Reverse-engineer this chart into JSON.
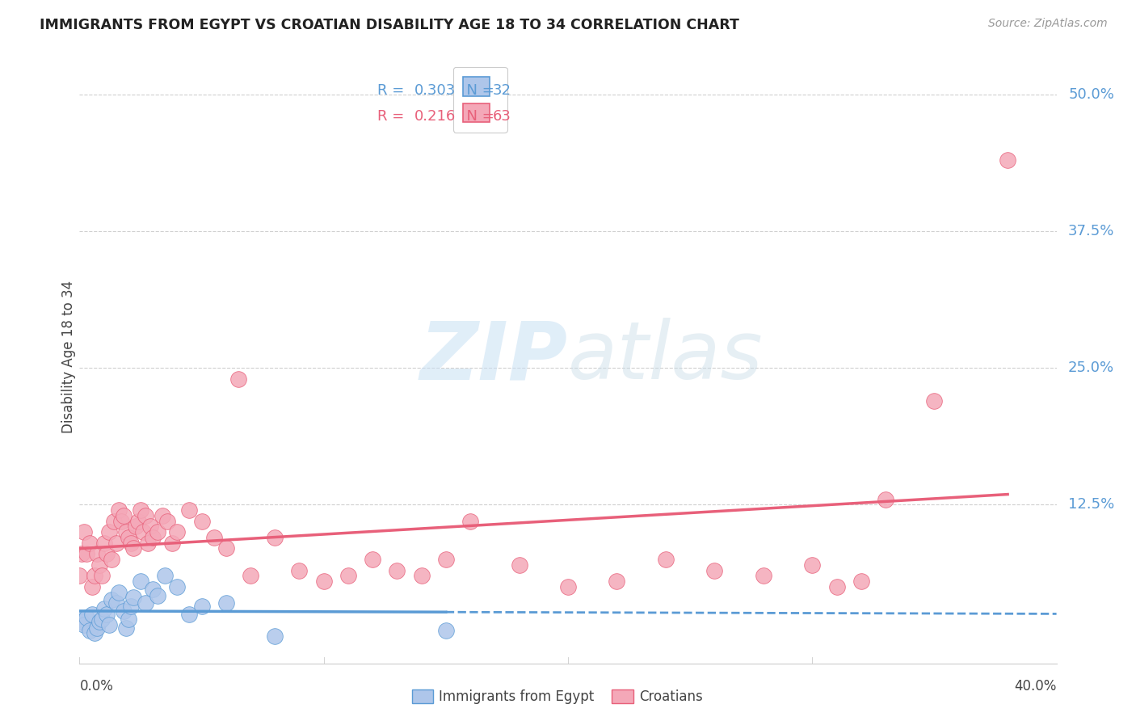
{
  "title": "IMMIGRANTS FROM EGYPT VS CROATIAN DISABILITY AGE 18 TO 34 CORRELATION CHART",
  "source": "Source: ZipAtlas.com",
  "xlabel_bottom_left": "0.0%",
  "xlabel_bottom_right": "40.0%",
  "ylabel": "Disability Age 18 to 34",
  "yticks": [
    "50.0%",
    "37.5%",
    "25.0%",
    "12.5%"
  ],
  "ytick_vals": [
    0.5,
    0.375,
    0.25,
    0.125
  ],
  "xlim": [
    0.0,
    0.4
  ],
  "ylim": [
    -0.02,
    0.54
  ],
  "legend_r_egypt": "0.303",
  "legend_n_egypt": "32",
  "legend_r_croatian": "0.216",
  "legend_n_croatian": "63",
  "egypt_color": "#aec6ea",
  "croatian_color": "#f4a8b8",
  "egypt_line_color": "#5b9bd5",
  "croatian_line_color": "#e8607a",
  "egypt_data_x": [
    0.0,
    0.001,
    0.002,
    0.003,
    0.004,
    0.005,
    0.006,
    0.007,
    0.008,
    0.009,
    0.01,
    0.011,
    0.012,
    0.013,
    0.015,
    0.016,
    0.018,
    0.019,
    0.02,
    0.021,
    0.022,
    0.025,
    0.027,
    0.03,
    0.032,
    0.035,
    0.04,
    0.045,
    0.05,
    0.06,
    0.08,
    0.15
  ],
  "egypt_data_y": [
    0.02,
    0.018,
    0.015,
    0.022,
    0.01,
    0.025,
    0.008,
    0.012,
    0.018,
    0.02,
    0.03,
    0.025,
    0.015,
    0.038,
    0.035,
    0.045,
    0.028,
    0.012,
    0.02,
    0.032,
    0.04,
    0.055,
    0.035,
    0.048,
    0.042,
    0.06,
    0.05,
    0.025,
    0.032,
    0.035,
    0.005,
    0.01
  ],
  "croatian_data_x": [
    0.0,
    0.001,
    0.002,
    0.003,
    0.004,
    0.005,
    0.006,
    0.007,
    0.008,
    0.009,
    0.01,
    0.011,
    0.012,
    0.013,
    0.014,
    0.015,
    0.016,
    0.017,
    0.018,
    0.019,
    0.02,
    0.021,
    0.022,
    0.023,
    0.024,
    0.025,
    0.026,
    0.027,
    0.028,
    0.029,
    0.03,
    0.032,
    0.034,
    0.036,
    0.038,
    0.04,
    0.045,
    0.05,
    0.055,
    0.06,
    0.065,
    0.07,
    0.08,
    0.09,
    0.1,
    0.11,
    0.12,
    0.13,
    0.14,
    0.15,
    0.16,
    0.18,
    0.2,
    0.22,
    0.24,
    0.26,
    0.28,
    0.3,
    0.31,
    0.32,
    0.33,
    0.35,
    0.38
  ],
  "croatian_data_y": [
    0.06,
    0.08,
    0.1,
    0.08,
    0.09,
    0.05,
    0.06,
    0.08,
    0.07,
    0.06,
    0.09,
    0.08,
    0.1,
    0.075,
    0.11,
    0.09,
    0.12,
    0.11,
    0.115,
    0.1,
    0.095,
    0.09,
    0.085,
    0.105,
    0.11,
    0.12,
    0.1,
    0.115,
    0.09,
    0.105,
    0.095,
    0.1,
    0.115,
    0.11,
    0.09,
    0.1,
    0.12,
    0.11,
    0.095,
    0.085,
    0.24,
    0.06,
    0.095,
    0.065,
    0.055,
    0.06,
    0.075,
    0.065,
    0.06,
    0.075,
    0.11,
    0.07,
    0.05,
    0.055,
    0.075,
    0.065,
    0.06,
    0.07,
    0.05,
    0.055,
    0.13,
    0.22,
    0.44
  ],
  "watermark_zip": "ZIP",
  "watermark_atlas": "atlas",
  "background_color": "#ffffff",
  "grid_color": "#d0d0d0"
}
